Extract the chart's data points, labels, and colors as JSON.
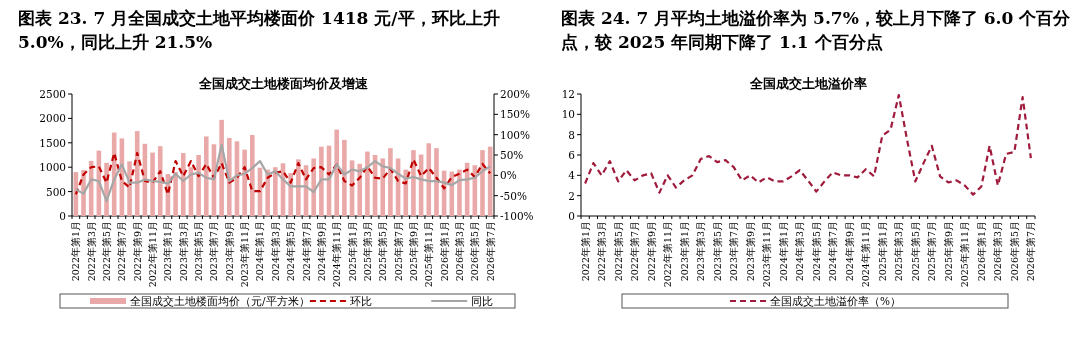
{
  "chart_data": [
    {
      "type": "bar",
      "title": "图表 23. 7 月全国成交土地平均楼面价 1418 元/平，环比上升 5.0%，同比上升 21.5%",
      "subtitle": "全国成交土地楼面均价及增速",
      "categories": [
        "2022年第1月",
        null,
        "2022年第3月",
        null,
        "2022年第5月",
        null,
        "2022年第7月",
        null,
        "2022年第9月",
        null,
        "2022年第11月",
        null,
        "2023年第1月",
        null,
        "2023年第3月",
        null,
        "2023年第5月",
        null,
        "2023年第7月",
        null,
        "2023年第9月",
        null,
        "2023年第11月",
        null,
        "2024年第1月",
        null,
        "2024年第3月",
        null,
        "2024年第5月",
        null,
        "2024年第7月",
        null,
        "2024年第9月",
        null,
        "2024年第11月",
        null,
        "2025年第1月",
        null,
        "2025年第3月",
        null,
        "2025年第5月",
        null,
        "2025年第7月",
        null,
        "2025年第9月",
        null,
        "2025年第11月",
        null,
        "2026年第1月",
        null,
        "2026年第3月",
        null,
        "2026年第5月",
        null,
        "2026年第7月"
      ],
      "series": [
        {
          "name": "全国成交土地楼面均价（元/平方米）",
          "color": "#eaa9a9",
          "values": [
            900,
            940,
            1130,
            1340,
            1090,
            1710,
            1590,
            1120,
            1740,
            1480,
            1300,
            1430,
            860,
            900,
            1290,
            1000,
            1250,
            1630,
            1470,
            1970,
            1600,
            1530,
            1360,
            1660,
            990,
            950,
            1000,
            1080,
            880,
            1160,
            1040,
            1180,
            1420,
            1440,
            1770,
            1560,
            1140,
            1070,
            1320,
            1250,
            1180,
            1390,
            1180,
            950,
            1350,
            1260,
            1490,
            1390,
            930,
            910,
            950,
            1090,
            1040,
            1350,
            1420
          ]
        },
        {
          "name": "环比",
          "type": "line",
          "axis": "y2",
          "color": "#c00000",
          "line_style": "dashed",
          "values": [
            -47,
            2,
            20,
            22,
            -18,
            55,
            -14,
            -30,
            55,
            -14,
            -18,
            10,
            -47,
            35,
            -2,
            35,
            -2,
            28,
            -6,
            30,
            -18,
            -6,
            20,
            -39,
            -39,
            -6,
            6,
            10,
            -18,
            30,
            -10,
            18,
            20,
            2,
            27,
            -14,
            -25,
            -6,
            22,
            -6,
            -8,
            16,
            -14,
            -20,
            39,
            -2,
            18,
            -6,
            -32,
            -4,
            4,
            14,
            -4,
            28,
            5
          ]
        },
        {
          "name": "同比",
          "type": "line",
          "axis": "y2",
          "color": "#a6a6a6",
          "line_style": "solid",
          "values": [
            -35,
            -45,
            -10,
            -14,
            -63,
            -10,
            27,
            -18,
            -18,
            -10,
            -14,
            -16,
            -20,
            4,
            -14,
            2,
            6,
            -6,
            -10,
            75,
            -14,
            0,
            4,
            18,
            35,
            2,
            10,
            -10,
            -27,
            -27,
            -27,
            -41,
            -10,
            -10,
            27,
            2,
            14,
            10,
            20,
            35,
            22,
            18,
            4,
            -8,
            -4,
            -10,
            -14,
            -14,
            -18,
            -24,
            -12,
            -10,
            -6,
            10,
            22
          ]
        }
      ],
      "ylim": [
        0,
        2500
      ],
      "yticks": [
        0,
        500,
        1000,
        1500,
        2000,
        2500
      ],
      "y2lim": [
        -100,
        200
      ],
      "y2ticks": [
        {
          "value": -100,
          "label": "-100%"
        },
        {
          "value": -50,
          "label": "-50%"
        },
        {
          "value": 0,
          "label": "0%"
        },
        {
          "value": 50,
          "label": "50%"
        },
        {
          "value": 100,
          "label": "100%"
        },
        {
          "value": 150,
          "label": "150%"
        },
        {
          "value": 200,
          "label": "200%"
        }
      ],
      "legend": "bottom"
    },
    {
      "type": "line",
      "title": "图表 24. 7 月平均土地溢价率为 5.7%，较上月下降了 6.0 个百分点，较 2025 年同期下降了 1.1 个百分点",
      "subtitle": "全国成交土地溢价率",
      "categories": [
        "2022年第1月",
        null,
        "2022年第3月",
        null,
        "2022年第5月",
        null,
        "2022年第7月",
        null,
        "2022年第9月",
        null,
        "2022年第11月",
        null,
        "2023年第1月",
        null,
        "2023年第3月",
        null,
        "2023年第5月",
        null,
        "2023年第7月",
        null,
        "2023年第9月",
        null,
        "2023年第11月",
        null,
        "2024年第1月",
        null,
        "2024年第3月",
        null,
        "2024年第5月",
        null,
        "2024年第7月",
        null,
        "2024年第9月",
        null,
        "2024年第11月",
        null,
        "2025年第1月",
        null,
        "2025年第3月",
        null,
        "2025年第5月",
        null,
        "2025年第7月",
        null,
        "2025年第9月",
        null,
        "2025年第11月",
        null,
        "2026年第1月",
        null,
        "2026年第3月",
        null,
        "2026年第5月",
        null,
        "2026年第7月"
      ],
      "series": [
        {
          "name": "全国成交土地溢价率（%）",
          "color": "#a01a3c",
          "values": [
            3.2,
            5.2,
            4.0,
            5.4,
            3.4,
            4.5,
            3.5,
            4.0,
            4.2,
            2.3,
            4.0,
            2.8,
            3.5,
            4.0,
            5.6,
            5.9,
            5.3,
            5.5,
            4.8,
            3.5,
            4.0,
            3.3,
            3.8,
            3.4,
            3.4,
            3.9,
            4.5,
            3.5,
            2.4,
            3.4,
            4.3,
            4.0,
            4.0,
            3.8,
            4.6,
            3.9,
            7.9,
            8.5,
            11.9,
            7.5,
            3.4,
            5.2,
            6.9,
            3.9,
            3.3,
            3.5,
            3.0,
            2.1,
            2.9,
            6.9,
            3.0,
            6.1,
            6.3,
            11.7,
            5.7
          ]
        }
      ],
      "line_style": "dashed",
      "ylim": [
        0,
        12
      ],
      "yticks": [
        0,
        2,
        4,
        6,
        8,
        10,
        12
      ],
      "legend": "bottom"
    }
  ]
}
